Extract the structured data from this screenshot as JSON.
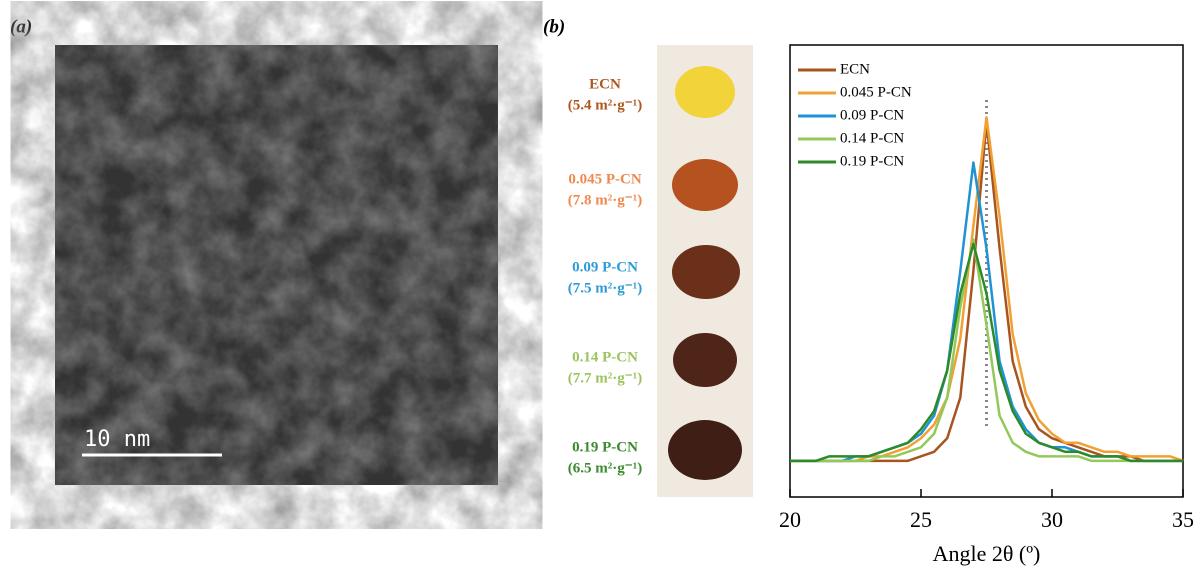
{
  "panel_a": {
    "label": "(a)",
    "scale_bar": "10 nm"
  },
  "panel_b": {
    "label": "(b)",
    "samples": [
      {
        "name": "ECN",
        "area": "(5.4 m²·g⁻¹)",
        "color": "#b0561f"
      },
      {
        "name": "0.045 P-CN",
        "area": "(7.8 m²·g⁻¹)",
        "color": "#ee8a4e"
      },
      {
        "name": "0.09 P-CN",
        "area": "(7.5 m²·g⁻¹)",
        "color": "#2e9bd6"
      },
      {
        "name": "0.14 P-CN",
        "area": "(7.7 m²·g⁻¹)",
        "color": "#9cc35c"
      },
      {
        "name": "0.19 P-CN",
        "area": "(6.5  m²·g⁻¹)",
        "color": "#3b8a2f"
      }
    ]
  },
  "chart_data": {
    "type": "line",
    "x_label": "Angle 2θ (º)",
    "x": [
      20,
      20.5,
      21,
      21.5,
      22,
      22.5,
      23,
      23.5,
      24,
      24.5,
      25,
      25.5,
      26,
      26.5,
      27,
      27.5,
      28,
      28.5,
      29,
      29.5,
      30,
      30.5,
      31,
      31.5,
      32,
      32.5,
      33,
      33.5,
      34,
      34.5,
      35
    ],
    "xlim": [
      20,
      35
    ],
    "xticks": [
      20,
      25,
      30,
      35
    ],
    "ylim": [
      0,
      100
    ],
    "reference_x": 27.5,
    "series": [
      {
        "name": "ECN",
        "color": "#a8541f",
        "values": [
          8,
          8,
          8,
          8,
          8,
          8,
          8,
          8,
          8,
          8,
          9,
          10,
          13,
          22,
          50,
          83,
          55,
          30,
          20,
          15,
          13,
          12,
          11,
          10,
          9,
          9,
          9,
          8,
          8,
          8,
          8
        ]
      },
      {
        "name": "0.045 P-CN",
        "color": "#f2a033",
        "values": [
          8,
          8,
          8,
          8,
          8,
          8,
          9,
          9,
          10,
          11,
          13,
          16,
          22,
          35,
          60,
          84,
          62,
          36,
          23,
          17,
          14,
          12,
          12,
          11,
          10,
          10,
          9,
          9,
          9,
          9,
          8
        ]
      },
      {
        "name": "0.09 P-CN",
        "color": "#1f93d3",
        "values": [
          8,
          8,
          8,
          8,
          8,
          9,
          9,
          10,
          11,
          12,
          14,
          18,
          28,
          50,
          74,
          55,
          30,
          20,
          15,
          12,
          11,
          11,
          10,
          9,
          9,
          9,
          8,
          8,
          8,
          8,
          8
        ]
      },
      {
        "name": "0.14 P-CN",
        "color": "#93c95a",
        "values": [
          8,
          8,
          8,
          8,
          8,
          8,
          8,
          9,
          9,
          10,
          11,
          14,
          22,
          42,
          57,
          38,
          18,
          12,
          10,
          9,
          9,
          9,
          9,
          8,
          8,
          8,
          8,
          8,
          8,
          8,
          8
        ]
      },
      {
        "name": "0.19 P-CN",
        "color": "#2d8a2a",
        "values": [
          8,
          8,
          8,
          9,
          9,
          9,
          9,
          10,
          11,
          12,
          15,
          19,
          28,
          45,
          56,
          45,
          28,
          19,
          14,
          12,
          11,
          10,
          10,
          9,
          9,
          9,
          8,
          8,
          8,
          8,
          8
        ]
      }
    ]
  }
}
